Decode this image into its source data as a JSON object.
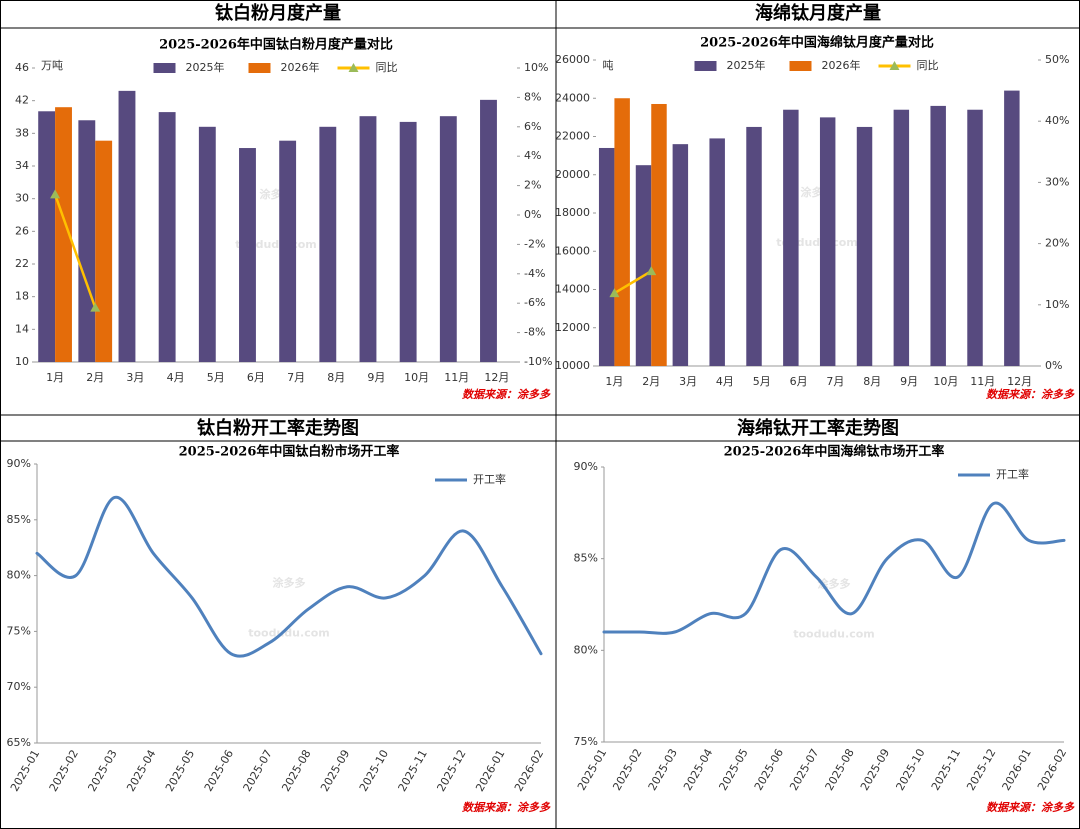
{
  "chart_data": [
    {
      "type": "bar",
      "panel_title": "钛白粉月度产量",
      "title": "2025-2026年中国钛白粉月度产量对比",
      "ylabel": "万吨",
      "categories": [
        "1月",
        "2月",
        "3月",
        "4月",
        "5月",
        "6月",
        "7月",
        "8月",
        "9月",
        "10月",
        "11月",
        "12月"
      ],
      "series": [
        {
          "name": "2025年",
          "type": "bar",
          "color": "#574a7f",
          "values": [
            40.7,
            39.6,
            43.2,
            40.6,
            38.8,
            36.2,
            37.1,
            38.8,
            40.1,
            39.4,
            40.1,
            42.1
          ]
        },
        {
          "name": "2026年",
          "type": "bar",
          "color": "#e46c0a",
          "values": [
            41.2,
            37.1,
            null,
            null,
            null,
            null,
            null,
            null,
            null,
            null,
            null,
            null
          ]
        },
        {
          "name": "同比",
          "type": "line",
          "axis": "y2",
          "color": "#ffc000",
          "marker_color": "#9bbb59",
          "values": [
            1.4,
            -6.3,
            null,
            null,
            null,
            null,
            null,
            null,
            null,
            null,
            null,
            null
          ]
        }
      ],
      "ylim": [
        10,
        46
      ],
      "yticks": [
        10,
        14,
        18,
        22,
        26,
        30,
        34,
        38,
        42,
        46
      ],
      "y2lim": [
        -10,
        10
      ],
      "y2ticks": [
        {
          "value": -10,
          "label": "-10%"
        },
        {
          "value": -8,
          "label": "-8%"
        },
        {
          "value": -6,
          "label": "-6%"
        },
        {
          "value": -4,
          "label": "-4%"
        },
        {
          "value": -2,
          "label": "-2%"
        },
        {
          "value": 0,
          "label": "0%"
        },
        {
          "value": 2,
          "label": "2%"
        },
        {
          "value": 4,
          "label": "4%"
        },
        {
          "value": 6,
          "label": "6%"
        },
        {
          "value": 8,
          "label": "8%"
        },
        {
          "value": 10,
          "label": "10%"
        }
      ],
      "grid": false,
      "legend": "top",
      "source": "数据来源：涂多多",
      "watermark": [
        "涂多多",
        "toodudu.com"
      ]
    },
    {
      "type": "bar",
      "panel_title": "海绵钛月度产量",
      "title": "2025-2026年中国海绵钛月度产量对比",
      "ylabel": "吨",
      "categories": [
        "1月",
        "2月",
        "3月",
        "4月",
        "5月",
        "6月",
        "7月",
        "8月",
        "9月",
        "10月",
        "11月",
        "12月"
      ],
      "series": [
        {
          "name": "2025年",
          "type": "bar",
          "color": "#574a7f",
          "values": [
            21400,
            20500,
            21600,
            21900,
            22500,
            23400,
            23000,
            22500,
            23400,
            23600,
            23400,
            24400
          ]
        },
        {
          "name": "2026年",
          "type": "bar",
          "color": "#e46c0a",
          "values": [
            24000,
            23700,
            null,
            null,
            null,
            null,
            null,
            null,
            null,
            null,
            null,
            null
          ]
        },
        {
          "name": "同比",
          "type": "line",
          "axis": "y2",
          "color": "#ffc000",
          "marker_color": "#9bbb59",
          "values": [
            11.9,
            15.5,
            null,
            null,
            null,
            null,
            null,
            null,
            null,
            null,
            null,
            null
          ]
        }
      ],
      "ylim": [
        10000,
        26000
      ],
      "yticks": [
        10000,
        12000,
        14000,
        16000,
        18000,
        20000,
        22000,
        24000,
        26000
      ],
      "y2lim": [
        0,
        50
      ],
      "y2ticks": [
        {
          "value": 0,
          "label": "0%"
        },
        {
          "value": 10,
          "label": "10%"
        },
        {
          "value": 20,
          "label": "20%"
        },
        {
          "value": 30,
          "label": "30%"
        },
        {
          "value": 40,
          "label": "40%"
        },
        {
          "value": 50,
          "label": "50%"
        }
      ],
      "grid": false,
      "legend": "top",
      "source": "数据来源：涂多多",
      "watermark": [
        "涂多多",
        "toodudu.com"
      ]
    },
    {
      "type": "line",
      "panel_title": "钛白粉开工率走势图",
      "title": "2025-2026年中国钛白粉市场开工率",
      "categories": [
        "2025-01",
        "2025-02",
        "2025-03",
        "2025-04",
        "2025-05",
        "2025-06",
        "2025-07",
        "2025-08",
        "2025-09",
        "2025-10",
        "2025-11",
        "2025-12",
        "2026-01",
        "2026-02"
      ],
      "series": [
        {
          "name": "开工率",
          "type": "line",
          "color": "#4f81bd",
          "values": [
            82,
            80,
            87,
            82,
            78,
            73,
            74,
            77,
            79,
            78,
            80,
            84,
            79,
            73
          ]
        }
      ],
      "ylim": [
        65,
        90
      ],
      "yticks": [
        {
          "value": 65,
          "label": "65%"
        },
        {
          "value": 70,
          "label": "70%"
        },
        {
          "value": 75,
          "label": "75%"
        },
        {
          "value": 80,
          "label": "80%"
        },
        {
          "value": 85,
          "label": "85%"
        },
        {
          "value": 90,
          "label": "90%"
        }
      ],
      "grid": false,
      "legend": "upper right",
      "smooth": true,
      "source": "数据来源：涂多多",
      "watermark": [
        "涂多多",
        "toodudu.com"
      ]
    },
    {
      "type": "line",
      "panel_title": "海绵钛开工率走势图",
      "title": "2025-2026年中国海绵钛市场开工率",
      "categories": [
        "2025-01",
        "2025-02",
        "2025-03",
        "2025-04",
        "2025-05",
        "2025-06",
        "2025-07",
        "2025-08",
        "2025-09",
        "2025-10",
        "2025-11",
        "2025-12",
        "2026-01",
        "2026-02"
      ],
      "series": [
        {
          "name": "开工率",
          "type": "line",
          "color": "#4f81bd",
          "values": [
            81,
            81,
            81,
            82,
            82,
            85.5,
            84,
            82,
            85,
            86,
            84,
            88,
            86,
            86
          ]
        }
      ],
      "ylim": [
        75,
        90
      ],
      "yticks": [
        {
          "value": 75,
          "label": "75%"
        },
        {
          "value": 80,
          "label": "80%"
        },
        {
          "value": 85,
          "label": "85%"
        },
        {
          "value": 90,
          "label": "90%"
        }
      ],
      "grid": false,
      "legend": "upper right",
      "smooth": true,
      "source": "数据来源：涂多多",
      "watermark": [
        "涂多多",
        "toodudu.com"
      ]
    }
  ]
}
